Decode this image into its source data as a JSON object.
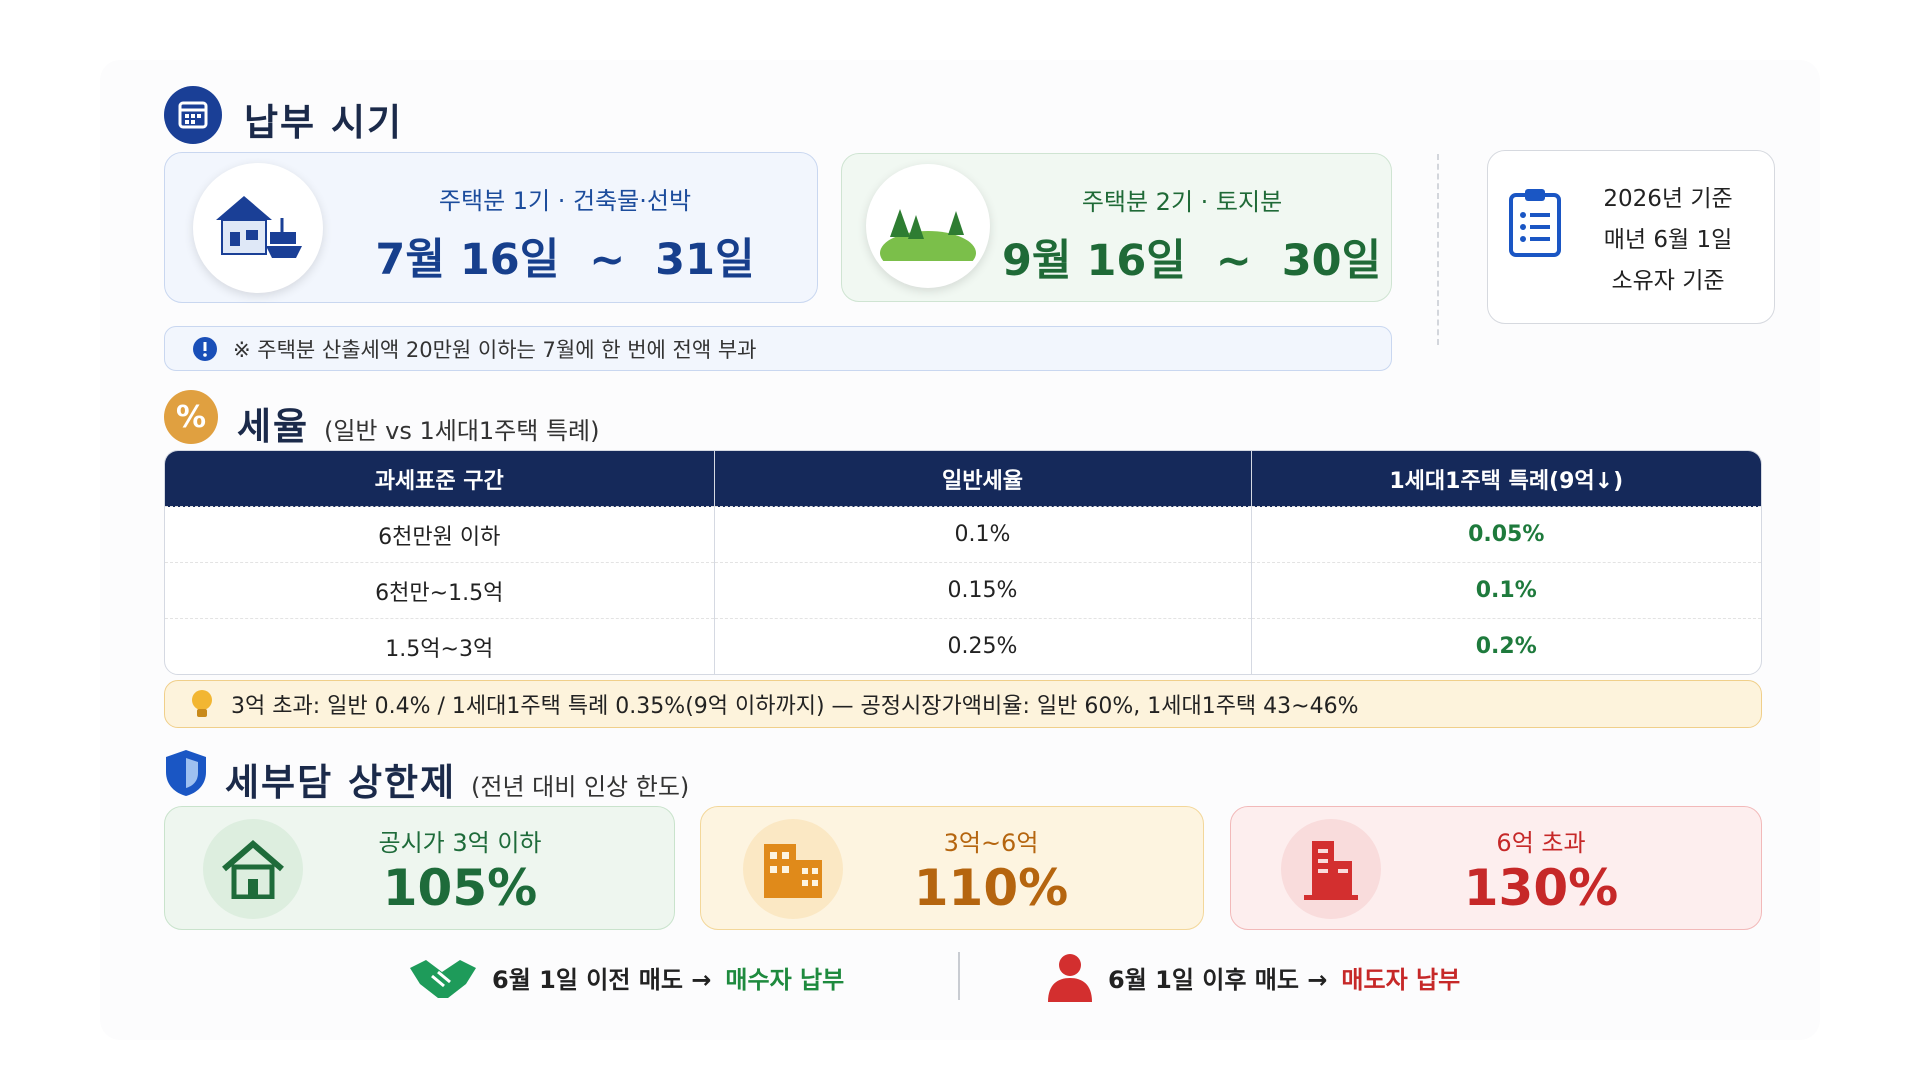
{
  "payment_period": {
    "title": "납부 시기",
    "cards": [
      {
        "label": "주택분 1기 · 건축물·선박",
        "period": "7월 16일  ~  31일"
      },
      {
        "label": "주택분 2기 · 토지분",
        "period": "9월 16일  ~  30일"
      }
    ],
    "basis": [
      "2026년 기준",
      "매년 6월 1일",
      "소유자 기준"
    ],
    "note": "※ 주택분 산출세액 20만원 이하는 7월에 한 번에 전액 부과"
  },
  "tax_rate": {
    "title": "세율",
    "subtitle": "(일반 vs 1세대1주택 특례)",
    "table": {
      "columns": [
        "과세표준 구간",
        "일반세율",
        "1세대1주택 특례(9억↓)"
      ],
      "rows": [
        [
          "6천만원 이하",
          "0.1%",
          "0.05%"
        ],
        [
          "6천만~1.5억",
          "0.15%",
          "0.1%"
        ],
        [
          "1.5억~3억",
          "0.25%",
          "0.2%"
        ]
      ]
    },
    "tip": "3억 초과: 일반 0.4% / 1세대1주택 특례 0.35%(9억 이하까지) — 공정시장가액비율: 일반 60%, 1세대1주택 43~46%"
  },
  "cap": {
    "title": "세부담 상한제",
    "subtitle": "(전년 대비 인상 한도)",
    "cards": [
      {
        "label": "공시가 3억 이하",
        "value": "105%"
      },
      {
        "label": "3억~6억",
        "value": "110%"
      },
      {
        "label": "6억 초과",
        "value": "130%"
      }
    ]
  },
  "footer": [
    {
      "text": "6월 1일 이전 매도 →",
      "highlight": "매수자 납부"
    },
    {
      "text": "6월 1일 이후 매도 →",
      "highlight": "매도자 납부"
    }
  ]
}
